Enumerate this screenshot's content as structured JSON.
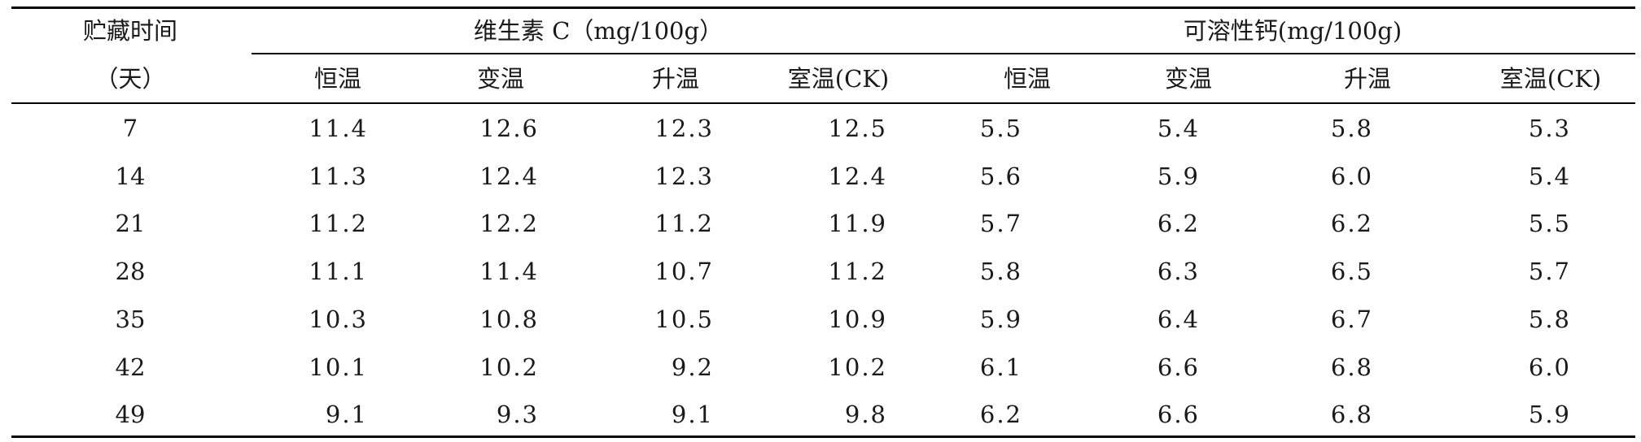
{
  "table": {
    "header": {
      "col1_line1": "贮藏时间",
      "col1_line2": "（天）",
      "group1": "维生素 C（mg/100g）",
      "group2": "可溶性钙(mg/100g)",
      "subcols": [
        "恒温",
        "变温",
        "升温",
        "室温(CK)",
        "恒温",
        "变温",
        "升温",
        "室温(CK)"
      ]
    },
    "rows": [
      {
        "day": "7",
        "values": [
          "11.4",
          "12.6",
          "12.3",
          "12.5",
          "5.5",
          "5.4",
          "5.8",
          "5.3"
        ]
      },
      {
        "day": "14",
        "values": [
          "11.3",
          "12.4",
          "12.3",
          "12.4",
          "5.6",
          "5.9",
          "6.0",
          "5.4"
        ]
      },
      {
        "day": "21",
        "values": [
          "11.2",
          "12.2",
          "11.2",
          "11.9",
          "5.7",
          "6.2",
          "6.2",
          "5.5"
        ]
      },
      {
        "day": "28",
        "values": [
          "11.1",
          "11.4",
          "10.7",
          "11.2",
          "5.8",
          "6.3",
          "6.5",
          "5.7"
        ]
      },
      {
        "day": "35",
        "values": [
          "10.3",
          "10.8",
          "10.5",
          "10.9",
          "5.9",
          "6.4",
          "6.7",
          "5.8"
        ]
      },
      {
        "day": "42",
        "values": [
          "10.1",
          "10.2",
          "9.2",
          "10.2",
          "6.1",
          "6.6",
          "6.8",
          "6.0"
        ]
      },
      {
        "day": "49",
        "values": [
          "9.1",
          "9.3",
          "9.1",
          "9.8",
          "6.2",
          "6.6",
          "6.8",
          "5.9"
        ]
      }
    ]
  }
}
